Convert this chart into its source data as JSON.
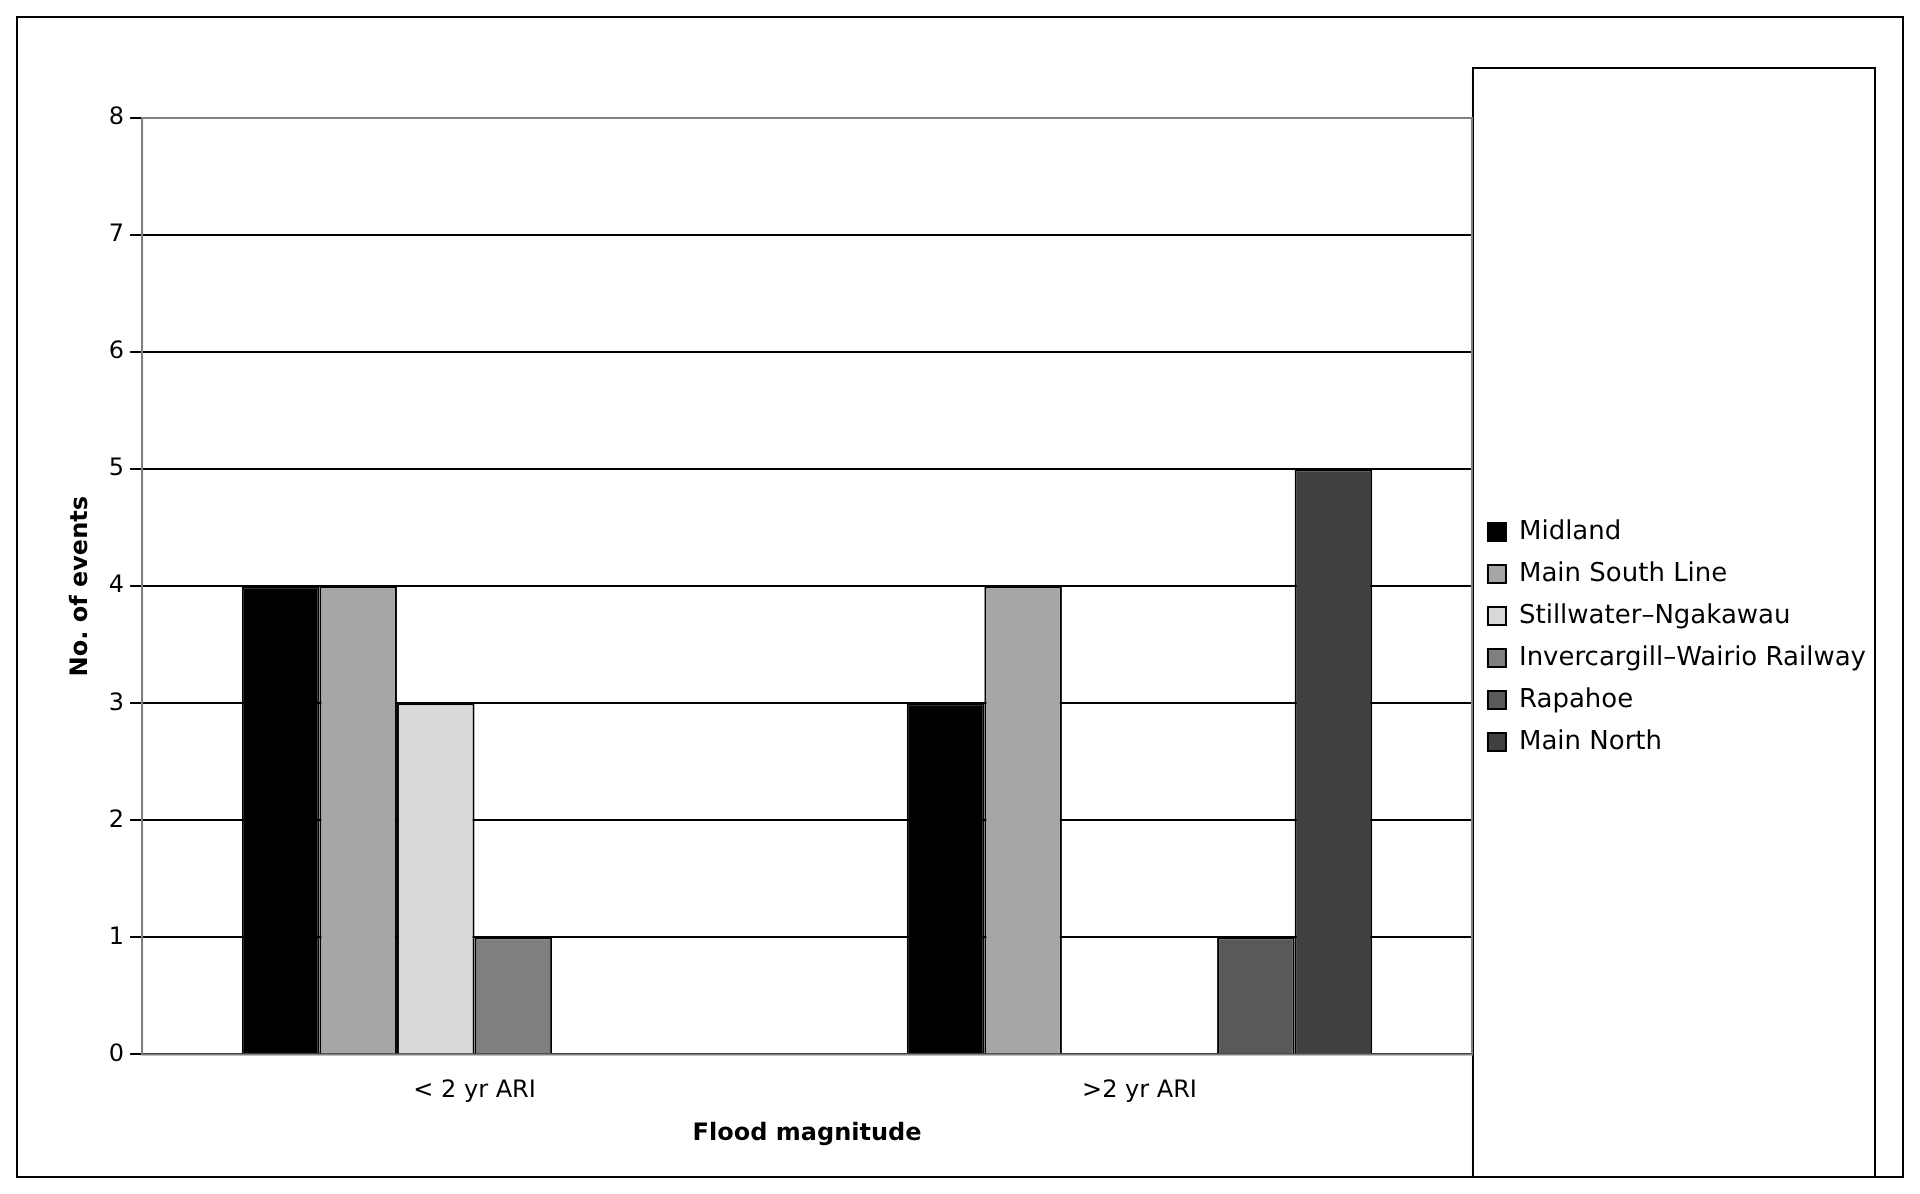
{
  "chart_data": {
    "type": "bar",
    "xlabel": "Flood magnitude",
    "ylabel": "No. of events",
    "categories": [
      "< 2 yr ARI",
      ">2 yr ARI"
    ],
    "series": [
      {
        "name": "Midland",
        "color": "#000000",
        "values": [
          4,
          3
        ]
      },
      {
        "name": "Main South Line",
        "color": "#a6a6a6",
        "values": [
          4,
          4
        ]
      },
      {
        "name": "Stillwater–Ngakawau",
        "color": "#d9d9d9",
        "values": [
          3,
          0
        ]
      },
      {
        "name": "Invercargill–Wairio Railway",
        "color": "#7f7f7f",
        "values": [
          1,
          0
        ]
      },
      {
        "name": "Rapahoe",
        "color": "#595959",
        "values": [
          0,
          1
        ]
      },
      {
        "name": "Main North",
        "color": "#404040",
        "values": [
          0,
          5
        ]
      }
    ],
    "ylim": [
      0,
      8
    ],
    "yticks": [
      0,
      1,
      2,
      3,
      4,
      5,
      6,
      7,
      8
    ],
    "grid": "y",
    "legend": "right"
  }
}
